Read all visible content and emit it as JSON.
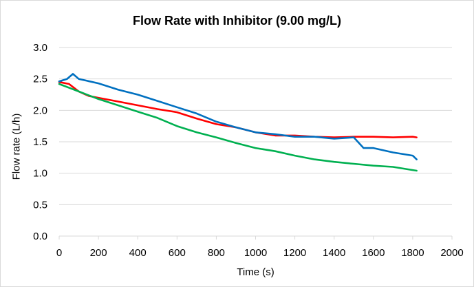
{
  "chart_data": {
    "type": "line",
    "title": "Flow Rate with Inhibitor (9.00 mg/L)",
    "xlabel": "Time (s)",
    "ylabel": "Flow rate (L/h)",
    "xlim": [
      0,
      2000
    ],
    "ylim": [
      0,
      3.0
    ],
    "x_ticks": [
      0,
      200,
      400,
      600,
      800,
      1000,
      1200,
      1400,
      1600,
      1800,
      2000
    ],
    "y_ticks": [
      0.0,
      0.5,
      1.0,
      1.5,
      2.0,
      2.5,
      3.0
    ],
    "y_tick_labels": [
      "0.0",
      "0.5",
      "1.0",
      "1.5",
      "2.0",
      "2.5",
      "3.0"
    ],
    "grid": "horizontal",
    "legend": "none",
    "series": [
      {
        "color": "#ff0000",
        "x": [
          0,
          50,
          100,
          150,
          200,
          300,
          400,
          500,
          600,
          700,
          800,
          900,
          1000,
          1100,
          1200,
          1300,
          1400,
          1500,
          1600,
          1700,
          1800,
          1820
        ],
        "y": [
          2.45,
          2.42,
          2.3,
          2.23,
          2.2,
          2.14,
          2.08,
          2.02,
          1.97,
          1.87,
          1.78,
          1.73,
          1.65,
          1.6,
          1.6,
          1.58,
          1.57,
          1.58,
          1.58,
          1.57,
          1.58,
          1.57
        ]
      },
      {
        "color": "#0070c0",
        "x": [
          0,
          40,
          70,
          100,
          200,
          300,
          400,
          500,
          600,
          700,
          800,
          900,
          1000,
          1100,
          1200,
          1300,
          1400,
          1500,
          1550,
          1600,
          1700,
          1800,
          1820
        ],
        "y": [
          2.46,
          2.5,
          2.58,
          2.5,
          2.43,
          2.33,
          2.25,
          2.15,
          2.05,
          1.95,
          1.82,
          1.73,
          1.65,
          1.62,
          1.58,
          1.58,
          1.55,
          1.57,
          1.4,
          1.4,
          1.33,
          1.28,
          1.22
        ]
      },
      {
        "color": "#00b050",
        "x": [
          0,
          100,
          200,
          300,
          400,
          500,
          600,
          700,
          800,
          900,
          1000,
          1100,
          1200,
          1300,
          1400,
          1500,
          1600,
          1700,
          1800,
          1820
        ],
        "y": [
          2.42,
          2.3,
          2.18,
          2.08,
          1.98,
          1.88,
          1.75,
          1.65,
          1.57,
          1.48,
          1.4,
          1.35,
          1.28,
          1.22,
          1.18,
          1.15,
          1.12,
          1.1,
          1.05,
          1.04
        ]
      }
    ]
  }
}
